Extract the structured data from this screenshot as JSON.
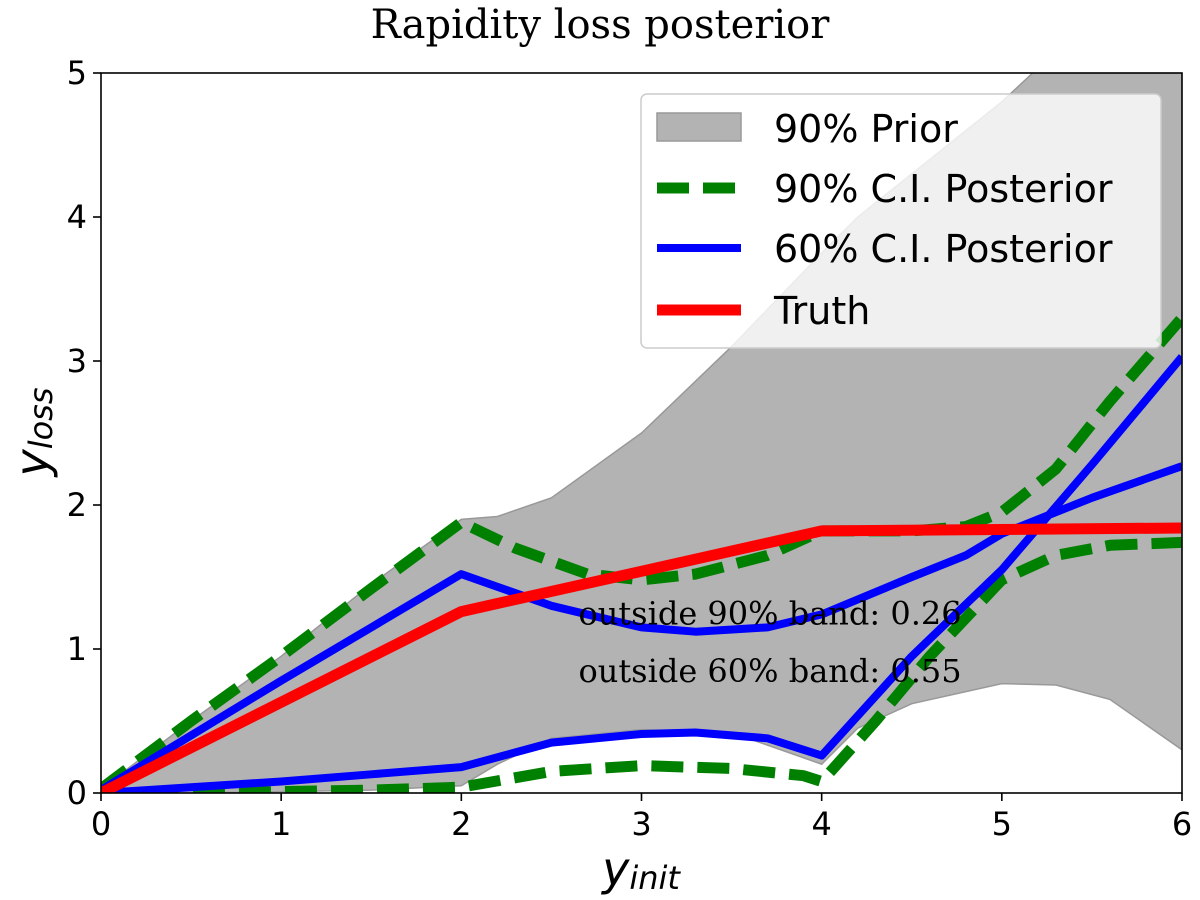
{
  "chart_data": {
    "type": "line",
    "title": "Rapidity loss posterior",
    "xlabel_main": "y",
    "xlabel_sub": "init",
    "ylabel_main": "y",
    "ylabel_sub": "loss",
    "xlim": [
      0,
      6
    ],
    "ylim": [
      0,
      5
    ],
    "x_ticks": [
      0,
      1,
      2,
      3,
      4,
      5,
      6
    ],
    "y_ticks": [
      0,
      1,
      2,
      3,
      4,
      5
    ],
    "grid": false,
    "legend_position": "top-right",
    "legend": [
      {
        "label": "90% Prior",
        "kind": "patch"
      },
      {
        "label": "90% C.I. Posterior",
        "kind": "dashed"
      },
      {
        "label": "60% C.I. Posterior",
        "kind": "line"
      },
      {
        "label": "Truth",
        "kind": "line"
      }
    ],
    "annotations": [
      {
        "text": "outside 90% band: 0.26",
        "x": 2.65,
        "y": 1.17
      },
      {
        "text": "outside 60% band: 0.55",
        "x": 2.65,
        "y": 0.77
      }
    ],
    "colors": {
      "prior_fill": "#b3b3b3",
      "prior_edge": "#999999",
      "posterior90": "#008000",
      "posterior60": "#0000ff",
      "truth": "#ff0000"
    },
    "prior_band": {
      "x": [
        0,
        0.5,
        1,
        1.5,
        2,
        2.2,
        2.5,
        3,
        3.5,
        4,
        4.2,
        4.5,
        5,
        5.3,
        5.6,
        6
      ],
      "upper": [
        0.03,
        0.5,
        0.95,
        1.45,
        1.9,
        1.92,
        2.05,
        2.5,
        3.1,
        3.75,
        4.0,
        4.3,
        4.8,
        5.15,
        5.5,
        5.5
      ],
      "lower": [
        0,
        0,
        0.01,
        0.02,
        0.05,
        0.2,
        0.38,
        0.44,
        0.42,
        0.2,
        0.45,
        0.62,
        0.76,
        0.75,
        0.65,
        0.3
      ]
    },
    "series": [
      {
        "name": "90% C.I. Posterior",
        "role": "upper",
        "x": [
          0,
          0.5,
          1,
          1.5,
          2,
          2.3,
          2.7,
          3,
          3.3,
          3.7,
          4,
          4.5,
          4.8,
          5,
          5.3,
          5.6,
          6
        ],
        "values": [
          0.03,
          0.5,
          0.95,
          1.42,
          1.88,
          1.7,
          1.52,
          1.48,
          1.52,
          1.65,
          1.82,
          1.82,
          1.85,
          1.95,
          2.25,
          2.72,
          3.3
        ]
      },
      {
        "name": "90% C.I. Posterior",
        "role": "lower",
        "x": [
          0,
          0.5,
          1,
          1.5,
          2,
          2.5,
          3,
          3.5,
          3.9,
          4,
          4.3,
          4.6,
          5,
          5.3,
          5.6,
          6
        ],
        "values": [
          0,
          0,
          0.01,
          0.02,
          0.04,
          0.15,
          0.19,
          0.17,
          0.12,
          0.08,
          0.5,
          0.95,
          1.48,
          1.65,
          1.72,
          1.74
        ]
      },
      {
        "name": "60% C.I. Posterior",
        "role": "upper",
        "x": [
          0,
          0.5,
          1,
          1.5,
          2,
          2.5,
          3,
          3.3,
          3.7,
          4,
          4.5,
          4.8,
          5,
          5.5,
          6
        ],
        "values": [
          0.02,
          0.4,
          0.78,
          1.15,
          1.52,
          1.3,
          1.15,
          1.12,
          1.15,
          1.24,
          1.5,
          1.65,
          1.8,
          2.05,
          2.27
        ]
      },
      {
        "name": "60% C.I. Posterior",
        "role": "lower",
        "x": [
          0,
          0.5,
          1,
          1.5,
          2,
          2.5,
          3,
          3.3,
          3.7,
          4,
          4.5,
          5,
          5.5,
          6
        ],
        "values": [
          0,
          0.04,
          0.08,
          0.13,
          0.18,
          0.35,
          0.41,
          0.42,
          0.38,
          0.26,
          0.95,
          1.55,
          2.28,
          3.03
        ]
      },
      {
        "name": "Truth",
        "x": [
          0,
          2,
          4,
          6
        ],
        "values": [
          0,
          1.26,
          1.82,
          1.84
        ]
      }
    ]
  }
}
